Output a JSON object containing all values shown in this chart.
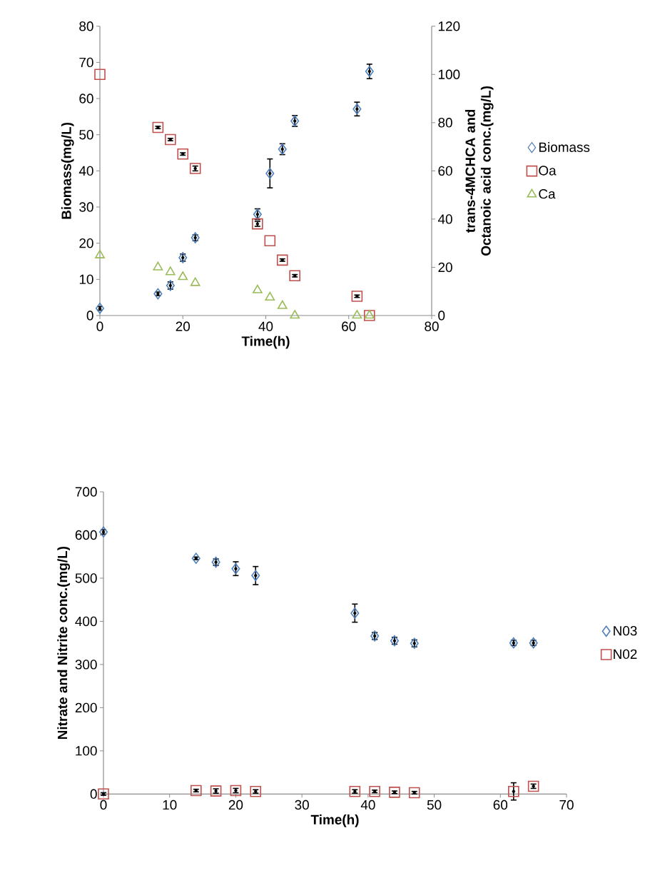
{
  "chart_data": [
    {
      "type": "scatter",
      "xlabel": "Time(h)",
      "ylabel": "Biomass(mg/L)",
      "y2label": "trans-4MCHCA and Octanoic acid conc.(mg/L)",
      "x": [
        0,
        14,
        17,
        20,
        23,
        38,
        41,
        44,
        47,
        62,
        65
      ],
      "xlim": [
        0,
        80
      ],
      "xticks": [
        0,
        20,
        40,
        60,
        80
      ],
      "ylim": [
        0,
        80
      ],
      "yticks": [
        0,
        10,
        20,
        30,
        40,
        50,
        60,
        70,
        80
      ],
      "y2lim": [
        0,
        120
      ],
      "y2ticks": [
        0,
        20,
        40,
        60,
        80,
        100,
        120
      ],
      "legend": "right",
      "series": [
        {
          "name": "Biomass",
          "color": "#4f81bd",
          "marker": "diamond",
          "values": [
            2,
            6,
            8.3,
            16,
            21.5,
            28,
            39.3,
            46,
            53.8,
            57.1,
            67.5
          ],
          "errors": [
            0.5,
            0.5,
            1,
            1,
            0.8,
            1.5,
            4,
            1.5,
            1.5,
            1.9,
            2
          ]
        },
        {
          "name": "Oa",
          "color": "#c0504d",
          "marker": "square",
          "axis": "y2",
          "values": [
            100,
            78,
            73,
            67,
            61,
            38,
            31,
            23,
            16.5,
            8,
            0
          ],
          "errors": [
            null,
            0.5,
            0.5,
            0.5,
            1,
            1,
            null,
            0.5,
            0.5,
            0.5,
            null
          ]
        },
        {
          "name": "Ca",
          "color": "#9bbb59",
          "marker": "triangle",
          "axis": "y2",
          "values": [
            25,
            20,
            18,
            16,
            13.5,
            10.5,
            7.5,
            4,
            0,
            0,
            0
          ]
        }
      ]
    },
    {
      "type": "scatter",
      "xlabel": "Time(h)",
      "ylabel": "Nitrate and Nitrite conc.(mg/L)",
      "x": [
        0,
        14,
        17,
        20,
        23,
        38,
        41,
        44,
        47,
        62,
        65
      ],
      "xlim": [
        0,
        70
      ],
      "xticks": [
        0,
        10,
        20,
        30,
        40,
        50,
        60,
        70
      ],
      "ylim": [
        0,
        700
      ],
      "yticks": [
        0,
        100,
        200,
        300,
        400,
        500,
        600,
        700
      ],
      "legend": "right",
      "series": [
        {
          "name": "N03",
          "color": "#4f81bd",
          "marker": "diamond",
          "values": [
            607,
            546,
            537,
            522,
            506,
            419,
            366,
            355,
            349,
            350,
            350
          ],
          "errors": [
            5,
            3,
            7.5,
            16,
            21,
            21,
            8,
            8,
            8,
            6,
            6
          ]
        },
        {
          "name": "N02",
          "color": "#c0504d",
          "marker": "square",
          "values": [
            0,
            8,
            7,
            8,
            6,
            6,
            6,
            4,
            3,
            6,
            18
          ],
          "errors": [
            3,
            3,
            5,
            5,
            4,
            4,
            3,
            3,
            3,
            20,
            5
          ]
        }
      ]
    }
  ]
}
